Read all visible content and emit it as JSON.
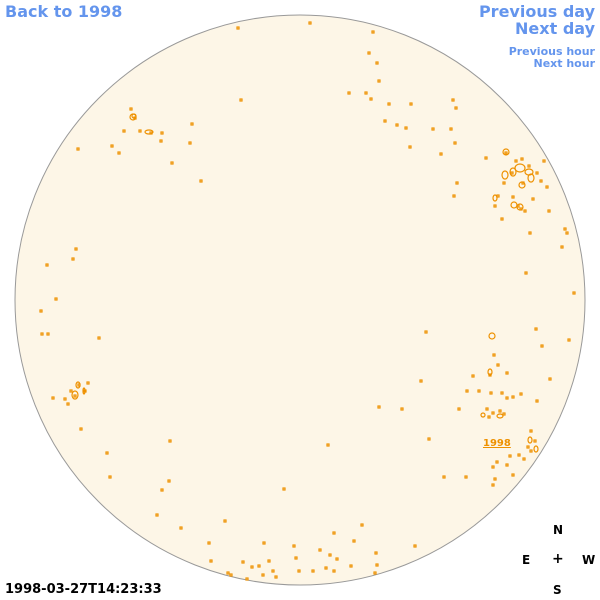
{
  "nav": {
    "back": "Back to 1998",
    "previous_day": "Previous day",
    "next_day": "Next day",
    "previous_hour": "Previous hour",
    "next_hour": "Next hour"
  },
  "disk_label": "1998",
  "timestamp": "1998-03-27T14:23:33",
  "compass": {
    "north": "N",
    "east": "E",
    "center": "+",
    "west": "W",
    "south": "S"
  },
  "colors": {
    "disk_fill": "#fdf6e7",
    "disk_stroke": "#999999",
    "contour": "#ee9100",
    "nav": "#6495ed"
  }
}
